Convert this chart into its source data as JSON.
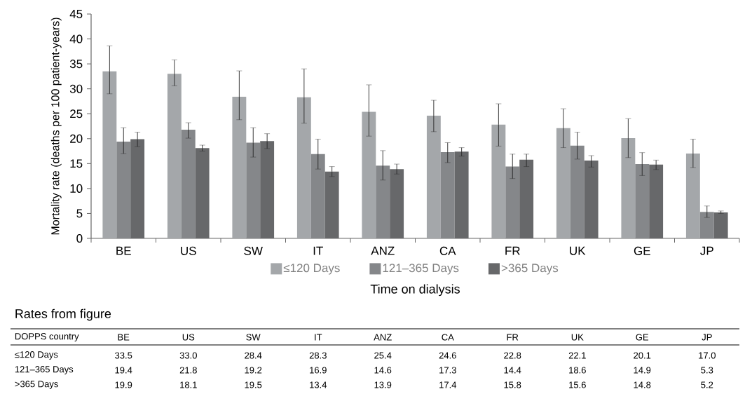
{
  "chart_data": {
    "type": "bar",
    "xlabel": "Time on dialysis",
    "ylabel": "Mortality rate (deaths per 100 patient-years)",
    "categories": [
      "BE",
      "US",
      "SW",
      "IT",
      "ANZ",
      "CA",
      "FR",
      "UK",
      "GE",
      "JP"
    ],
    "ylim": [
      0,
      45
    ],
    "yticks": [
      0,
      5,
      10,
      15,
      20,
      25,
      30,
      35,
      40,
      45
    ],
    "grid": false,
    "legend": "bottom",
    "annotations": [
      "Rates from figure",
      "DOPPS country"
    ],
    "series": [
      {
        "name": "≤120 Days",
        "color": "#a4a7aa",
        "values": [
          33.5,
          33.0,
          28.4,
          28.3,
          25.4,
          24.6,
          22.8,
          22.1,
          20.1,
          17.0
        ],
        "value_labels": [
          "33.5",
          "33.0",
          "28.4",
          "28.3",
          "25.4",
          "24.6",
          "22.8",
          "22.1",
          "20.1",
          "17.0"
        ],
        "errors": [
          [
            29.0,
            38.6
          ],
          [
            30.6,
            35.8
          ],
          [
            23.8,
            33.6
          ],
          [
            23.1,
            34.0
          ],
          [
            20.5,
            30.8
          ],
          [
            21.4,
            27.7
          ],
          [
            18.5,
            27.0
          ],
          [
            18.2,
            26.0
          ],
          [
            16.2,
            24.0
          ],
          [
            14.2,
            19.9
          ]
        ]
      },
      {
        "name": "121–365 Days",
        "color": "#85878a",
        "values": [
          19.4,
          21.8,
          19.2,
          16.9,
          14.6,
          17.3,
          14.4,
          18.6,
          14.9,
          5.3
        ],
        "value_labels": [
          "19.4",
          "21.8",
          "19.2",
          "16.9",
          "14.6",
          "17.3",
          "14.4",
          "18.6",
          "14.9",
          "5.3"
        ],
        "errors": [
          [
            17.0,
            22.2
          ],
          [
            20.1,
            23.2
          ],
          [
            16.3,
            22.2
          ],
          [
            13.9,
            19.9
          ],
          [
            11.7,
            17.6
          ],
          [
            15.2,
            19.2
          ],
          [
            12.0,
            16.9
          ],
          [
            15.9,
            21.3
          ],
          [
            12.6,
            17.2
          ],
          [
            4.2,
            6.5
          ]
        ]
      },
      {
        "name": ">365 Days",
        "color": "#67686a",
        "values": [
          19.9,
          18.1,
          19.5,
          13.4,
          13.9,
          17.4,
          15.8,
          15.6,
          14.8,
          5.2
        ],
        "value_labels": [
          "19.9",
          "18.1",
          "19.5",
          "13.4",
          "13.9",
          "17.4",
          "15.8",
          "15.6",
          "14.8",
          "5.2"
        ],
        "errors": [
          [
            18.4,
            21.3
          ],
          [
            17.5,
            18.7
          ],
          [
            18.0,
            21.0
          ],
          [
            12.4,
            14.4
          ],
          [
            12.9,
            14.9
          ],
          [
            16.5,
            18.2
          ],
          [
            14.4,
            16.9
          ],
          [
            14.3,
            16.6
          ],
          [
            13.8,
            15.7
          ],
          [
            5.0,
            5.5
          ]
        ]
      }
    ]
  }
}
